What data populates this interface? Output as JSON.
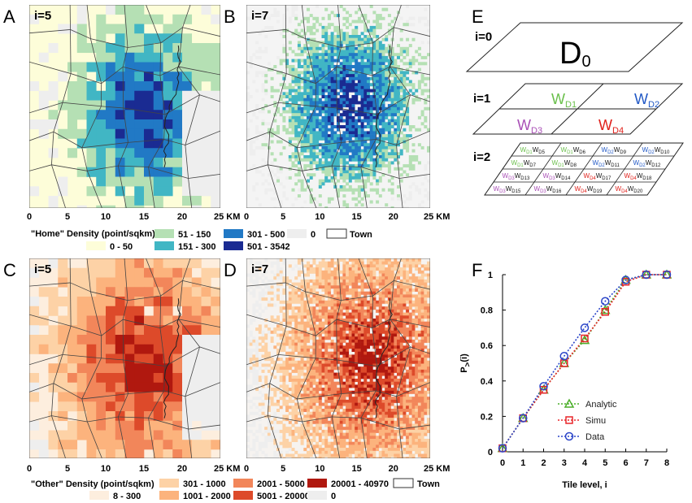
{
  "panels": {
    "A": {
      "letter": "A",
      "level": "i=5"
    },
    "B": {
      "letter": "B",
      "level": "i=7"
    },
    "C": {
      "letter": "C",
      "level": "i=5"
    },
    "D": {
      "letter": "D",
      "level": "i=7"
    },
    "E": {
      "letter": "E"
    },
    "F": {
      "letter": "F"
    }
  },
  "map_axis": {
    "ticks": [
      "0",
      "5",
      "10",
      "15",
      "20",
      "25 KM"
    ]
  },
  "home_legend": {
    "title": "\"Home\" Density (point/sqkm)",
    "classes": [
      {
        "label": "0 - 50",
        "color": "#fdfdd9"
      },
      {
        "label": "51 - 150",
        "color": "#b5e0b4"
      },
      {
        "label": "151 - 300",
        "color": "#41b6c4"
      },
      {
        "label": "301 - 500",
        "color": "#2179c5"
      },
      {
        "label": "501 - 3542",
        "color": "#1a2b92"
      },
      {
        "label": "0",
        "color": "#eeeeee"
      }
    ],
    "town_label": "Town"
  },
  "other_legend": {
    "title": "\"Other\" Density (point/sqkm)",
    "classes": [
      {
        "label": "8 - 300",
        "color": "#fdeede"
      },
      {
        "label": "301 - 1000",
        "color": "#fdd2a6"
      },
      {
        "label": "1001 - 2000",
        "color": "#fcb37d"
      },
      {
        "label": "2001 - 5000",
        "color": "#f2865a"
      },
      {
        "label": "5001 - 20000",
        "color": "#dd4a2a"
      },
      {
        "label": "20001 - 40970",
        "color": "#b0180f"
      },
      {
        "label": "0",
        "color": "#eeeeee"
      }
    ],
    "town_label": "Town"
  },
  "hierarchy": {
    "levels": [
      "i=0",
      "i=1",
      "i=2"
    ],
    "d0": "D",
    "d0_sub": "0",
    "level1": [
      {
        "w": "W",
        "sub": "D1",
        "color": "#6abf4b"
      },
      {
        "w": "W",
        "sub": "D2",
        "color": "#2158c5"
      },
      {
        "w": "W",
        "sub": "D3",
        "color": "#a94fb6"
      },
      {
        "w": "W",
        "sub": "D4",
        "color": "#e0201b"
      }
    ],
    "level2": [
      {
        "p": "D1",
        "pc": "#6abf4b",
        "c": "D5"
      },
      {
        "p": "D1",
        "pc": "#6abf4b",
        "c": "D6"
      },
      {
        "p": "D2",
        "pc": "#2158c5",
        "c": "D9"
      },
      {
        "p": "D2",
        "pc": "#2158c5",
        "c": "D10"
      },
      {
        "p": "D1",
        "pc": "#6abf4b",
        "c": "D7"
      },
      {
        "p": "D1",
        "pc": "#6abf4b",
        "c": "D8"
      },
      {
        "p": "D2",
        "pc": "#2158c5",
        "c": "D11"
      },
      {
        "p": "D2",
        "pc": "#2158c5",
        "c": "D12"
      },
      {
        "p": "D3",
        "pc": "#a94fb6",
        "c": "D13"
      },
      {
        "p": "D3",
        "pc": "#a94fb6",
        "c": "D14"
      },
      {
        "p": "D4",
        "pc": "#e0201b",
        "c": "D17"
      },
      {
        "p": "D4",
        "pc": "#e0201b",
        "c": "D18"
      },
      {
        "p": "D3",
        "pc": "#a94fb6",
        "c": "D15"
      },
      {
        "p": "D3",
        "pc": "#a94fb6",
        "c": "D16"
      },
      {
        "p": "D4",
        "pc": "#e0201b",
        "c": "D19"
      },
      {
        "p": "D4",
        "pc": "#e0201b",
        "c": "D20"
      }
    ]
  },
  "chart_data": {
    "type": "line",
    "xlabel": "Tile level, i",
    "ylabel": "P",
    "ylabel_sub": ">",
    "ylabel_tail": "(i)",
    "xlim": [
      0,
      8
    ],
    "ylim": [
      0,
      1
    ],
    "xticks": [
      "0",
      "1",
      "2",
      "3",
      "4",
      "5",
      "6",
      "7",
      "8"
    ],
    "yticks": [
      "0",
      "0.2",
      "0.4",
      "0.6",
      "0.8",
      "1"
    ],
    "series": [
      {
        "name": "Analytic",
        "color": "#4caf2a",
        "marker": "triangle",
        "x": [
          0,
          1,
          2,
          3,
          4,
          5,
          6,
          7,
          8
        ],
        "y": [
          0.02,
          0.19,
          0.35,
          0.5,
          0.63,
          0.8,
          0.97,
          1.0,
          1.0
        ]
      },
      {
        "name": "Simu",
        "color": "#e8262a",
        "marker": "square",
        "x": [
          0,
          1,
          2,
          3,
          4,
          5,
          6,
          7,
          8
        ],
        "y": [
          0.02,
          0.19,
          0.35,
          0.5,
          0.64,
          0.79,
          0.96,
          1.0,
          1.0
        ]
      },
      {
        "name": "Data",
        "color": "#2b45c8",
        "marker": "circle",
        "x": [
          0,
          1,
          2,
          3,
          4,
          5,
          6,
          7,
          8
        ],
        "y": [
          0.02,
          0.19,
          0.37,
          0.54,
          0.7,
          0.85,
          0.97,
          1.0,
          1.0
        ]
      }
    ],
    "grid": false,
    "legend_position": "lower-center"
  }
}
